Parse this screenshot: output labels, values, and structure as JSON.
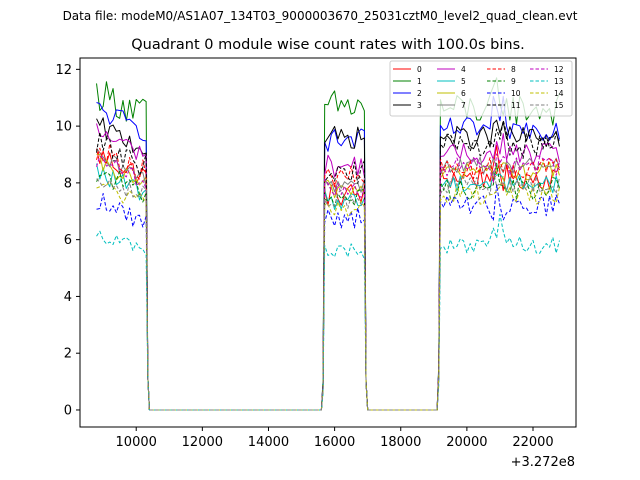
{
  "header": {
    "data_file": "Data file: modeM0/AS1A07_134T03_9000003670_25031cztM0_level2_quad_clean.evt"
  },
  "chart_data": {
    "type": "line",
    "title": "Quadrant 0 module wise count rates with 100.0s bins.",
    "xlabel": "",
    "ylabel": "",
    "x_offset_label": "+3.272e8",
    "xlim": [
      8300,
      23300
    ],
    "ylim": [
      -0.6,
      12.4
    ],
    "x_ticks": [
      10000,
      12000,
      14000,
      16000,
      18000,
      20000,
      22000
    ],
    "y_ticks": [
      0,
      2,
      4,
      6,
      8,
      10,
      12
    ],
    "legend_position": "top-right",
    "segments": [
      {
        "start": 8800,
        "end": 10300
      },
      {
        "start": 15700,
        "end": 16900
      },
      {
        "start": 19200,
        "end": 22800
      }
    ],
    "gaps": [
      {
        "from": 10300,
        "to": 10400
      },
      {
        "from": 16900,
        "to": 17000
      },
      {
        "from": 10400,
        "to": 15600
      },
      {
        "from": 17000,
        "to": 19100
      }
    ],
    "series": [
      {
        "name": "0",
        "color": "#ff0000",
        "dash": "solid",
        "segment_levels": [
          8.6,
          7.6,
          8.2
        ],
        "jitter": 0.45
      },
      {
        "name": "1",
        "color": "#008000",
        "dash": "solid",
        "segment_levels": [
          10.8,
          10.7,
          10.6
        ],
        "jitter": 0.6
      },
      {
        "name": "2",
        "color": "#0000ff",
        "dash": "solid",
        "segment_levels": [
          10.2,
          9.5,
          9.9
        ],
        "jitter": 0.4
      },
      {
        "name": "3",
        "color": "#000000",
        "dash": "solid",
        "segment_levels": [
          9.6,
          9.6,
          9.6
        ],
        "jitter": 0.4
      },
      {
        "name": "4",
        "color": "#bf00bf",
        "dash": "solid",
        "segment_levels": [
          9.4,
          8.6,
          9.0
        ],
        "jitter": 0.4
      },
      {
        "name": "5",
        "color": "#00bfbf",
        "dash": "solid",
        "segment_levels": [
          8.0,
          7.4,
          8.0
        ],
        "jitter": 0.35
      },
      {
        "name": "6",
        "color": "#bfbf00",
        "dash": "solid",
        "segment_levels": [
          8.3,
          7.8,
          8.4
        ],
        "jitter": 0.35
      },
      {
        "name": "7",
        "color": "#808080",
        "dash": "solid",
        "segment_levels": [
          8.5,
          8.0,
          8.6
        ],
        "jitter": 0.35
      },
      {
        "name": "8",
        "color": "#ff0000",
        "dash": "dashed",
        "segment_levels": [
          8.8,
          8.2,
          8.5
        ],
        "jitter": 0.4
      },
      {
        "name": "9",
        "color": "#008000",
        "dash": "dashed",
        "segment_levels": [
          8.0,
          7.5,
          7.8
        ],
        "jitter": 0.4
      },
      {
        "name": "10",
        "color": "#0000ff",
        "dash": "dashed",
        "segment_levels": [
          7.0,
          6.8,
          7.2
        ],
        "jitter": 0.4
      },
      {
        "name": "11",
        "color": "#000000",
        "dash": "dashed",
        "segment_levels": [
          9.0,
          8.4,
          9.3
        ],
        "jitter": 0.45
      },
      {
        "name": "12",
        "color": "#bf00bf",
        "dash": "dashed",
        "segment_levels": [
          8.4,
          7.8,
          8.6
        ],
        "jitter": 0.35
      },
      {
        "name": "13",
        "color": "#00bfbf",
        "dash": "dashed",
        "segment_levels": [
          5.9,
          5.6,
          5.8
        ],
        "jitter": 0.3
      },
      {
        "name": "14",
        "color": "#bfbf00",
        "dash": "dashed",
        "segment_levels": [
          7.6,
          7.1,
          7.6
        ],
        "jitter": 0.35
      },
      {
        "name": "15",
        "color": "#808080",
        "dash": "dashed",
        "segment_levels": [
          7.9,
          7.4,
          7.9
        ],
        "jitter": 0.35
      }
    ]
  }
}
